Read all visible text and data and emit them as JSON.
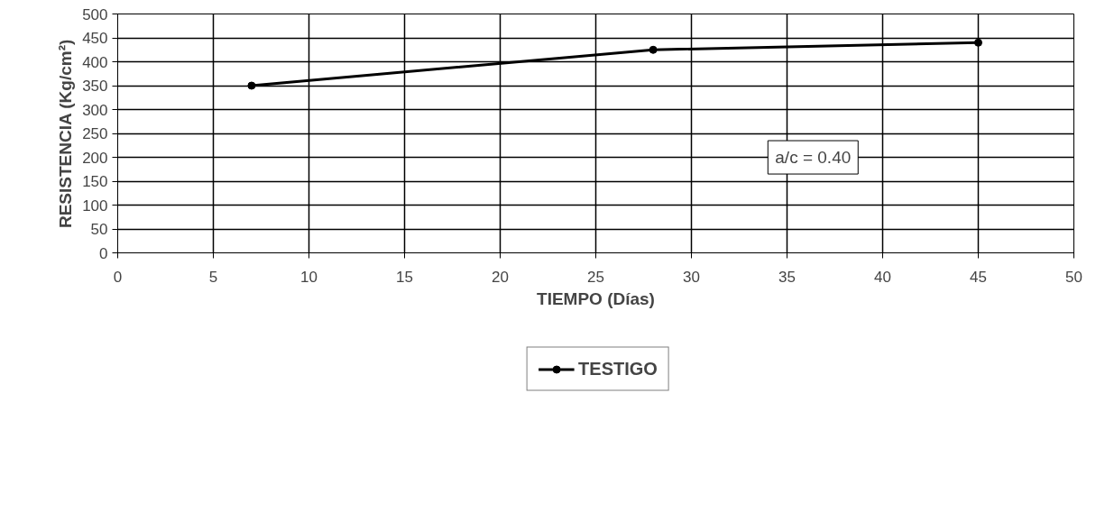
{
  "chart_data": {
    "type": "line",
    "xlabel": "TIEMPO (Días)",
    "ylabel": "RESISTENCIA (Kg/cm²)",
    "x": [
      7,
      28,
      45
    ],
    "series": [
      {
        "name": "TESTIGO",
        "color": "#000000",
        "values": [
          350,
          425,
          440
        ]
      }
    ],
    "xlim": [
      0,
      50
    ],
    "xticks": [
      0,
      5,
      10,
      15,
      20,
      25,
      30,
      35,
      40,
      45,
      50
    ],
    "ylim": [
      0,
      500
    ],
    "yticks": [
      0,
      50,
      100,
      150,
      200,
      250,
      300,
      350,
      400,
      450,
      500
    ],
    "annotations": [
      "a/c = 0.40"
    ],
    "grid": true,
    "legend": "bottom",
    "marker": "circle",
    "line_style": "solid"
  }
}
